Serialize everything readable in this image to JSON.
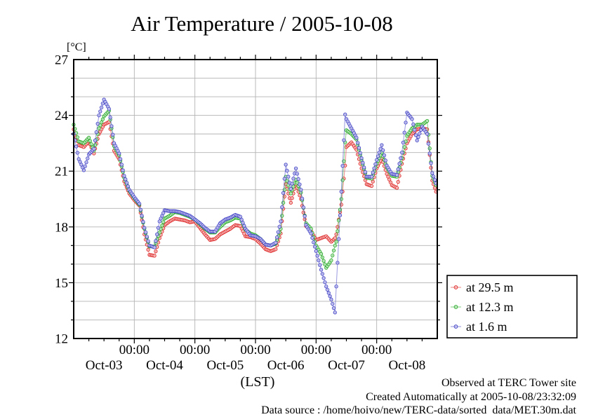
{
  "title": "Air Temperature / 2005-10-08",
  "y_axis": {
    "unit_label": "[°C]",
    "min": 12,
    "max": 27,
    "major_ticks": [
      12,
      15,
      18,
      21,
      24,
      27
    ],
    "minor_step": 1
  },
  "x_axis": {
    "label": "(LST)",
    "hour_label": "00:00",
    "span_hours": 144,
    "major_step_hours": 24,
    "minor_step_hours": 6,
    "day_labels": [
      "Oct-03",
      "Oct-04",
      "Oct-05",
      "Oct-06",
      "Oct-07",
      "Oct-08"
    ]
  },
  "footer": {
    "lines": [
      "Observed at TERC Tower site",
      "Created Automatically at 2005-10-08/23:32:09",
      "Data source : /home/hoivo/new/TERC-data/sorted  data/MET.30m.dat"
    ]
  },
  "legend": {
    "position": "right-bottom-outside"
  },
  "chart_data": {
    "type": "line",
    "title": "Air Temperature / 2005-10-08",
    "xlabel": "(LST)",
    "ylabel": "[°C]",
    "ylim": [
      12,
      27
    ],
    "grid": true,
    "x_unit": "hours since 2005-10-03 00:00 LST",
    "x": [
      0,
      2,
      4,
      6,
      8,
      10,
      12,
      14,
      16,
      18,
      20,
      22,
      24,
      26,
      28,
      30,
      32,
      34,
      36,
      38,
      40,
      42,
      44,
      46,
      48,
      50,
      52,
      54,
      56,
      58,
      60,
      62,
      64,
      66,
      68,
      70,
      72,
      74,
      76,
      78,
      80,
      82,
      84,
      86,
      88,
      90,
      92,
      94,
      96,
      98,
      100,
      102,
      103.5,
      104,
      106,
      107.5,
      108,
      110,
      112,
      114,
      116,
      118,
      120,
      122,
      124,
      126,
      128,
      130,
      132,
      134,
      136,
      138,
      140,
      142,
      143.5
    ],
    "series": [
      {
        "name": "at 29.5 m",
        "color": "#e03030",
        "values": [
          23.25,
          22.4,
          22.3,
          22.6,
          21.95,
          23.0,
          23.5,
          23.65,
          22.1,
          21.65,
          20.45,
          19.8,
          19.45,
          19.15,
          17.6,
          16.5,
          16.45,
          17.4,
          18.1,
          18.3,
          18.45,
          18.4,
          18.35,
          18.25,
          18.3,
          17.95,
          17.6,
          17.3,
          17.35,
          17.6,
          17.75,
          17.9,
          18.1,
          18.05,
          17.5,
          17.45,
          17.35,
          17.1,
          16.8,
          16.7,
          16.8,
          17.65,
          20.3,
          19.3,
          20.3,
          19.5,
          18.05,
          17.8,
          17.3,
          17.4,
          17.5,
          17.2,
          17.4,
          17.6,
          19.2,
          21.3,
          22.3,
          22.55,
          22.15,
          21.15,
          20.3,
          20.2,
          21.15,
          21.7,
          20.85,
          20.25,
          20.1,
          21.4,
          22.5,
          23.0,
          23.25,
          23.3,
          23.25,
          20.5,
          19.9
        ]
      },
      {
        "name": "at 12.3 m",
        "color": "#2fae2f",
        "values": [
          23.5,
          22.6,
          22.5,
          22.8,
          22.1,
          23.3,
          23.95,
          24.25,
          22.35,
          21.85,
          20.65,
          19.95,
          19.55,
          19.2,
          17.9,
          16.95,
          16.95,
          17.7,
          18.45,
          18.6,
          18.8,
          18.75,
          18.65,
          18.55,
          18.4,
          18.15,
          17.9,
          17.7,
          17.7,
          18.0,
          18.25,
          18.35,
          18.5,
          18.45,
          17.85,
          17.65,
          17.55,
          17.35,
          17.05,
          17.0,
          17.1,
          17.9,
          20.7,
          19.8,
          20.55,
          19.85,
          18.2,
          17.9,
          17.0,
          16.55,
          15.8,
          16.2,
          17.0,
          17.2,
          19.5,
          22.55,
          23.2,
          23.0,
          22.7,
          21.6,
          20.65,
          20.6,
          21.4,
          22.0,
          21.2,
          20.75,
          20.7,
          21.7,
          22.9,
          23.3,
          23.5,
          23.5,
          23.7,
          20.75,
          20.25
        ]
      },
      {
        "name": "at 1.6 m",
        "color": "#4747c8",
        "values": [
          23.0,
          21.65,
          21.05,
          21.9,
          22.2,
          24.0,
          24.85,
          24.35,
          22.5,
          21.95,
          20.75,
          20.0,
          19.6,
          19.25,
          17.95,
          17.0,
          16.9,
          18.3,
          18.9,
          18.85,
          18.85,
          18.8,
          18.7,
          18.6,
          18.4,
          18.2,
          17.95,
          17.75,
          17.75,
          18.2,
          18.4,
          18.5,
          18.65,
          18.55,
          17.9,
          17.55,
          17.5,
          17.35,
          17.05,
          17.0,
          17.15,
          18.3,
          21.35,
          20.05,
          21.15,
          20.0,
          18.1,
          17.65,
          16.7,
          15.7,
          14.8,
          14.1,
          13.4,
          14.8,
          19.9,
          24.05,
          23.8,
          23.3,
          22.8,
          21.7,
          20.7,
          20.7,
          21.6,
          22.4,
          21.3,
          20.85,
          20.8,
          22.0,
          24.15,
          23.8,
          22.65,
          23.4,
          23.0,
          20.9,
          20.35
        ]
      }
    ]
  }
}
